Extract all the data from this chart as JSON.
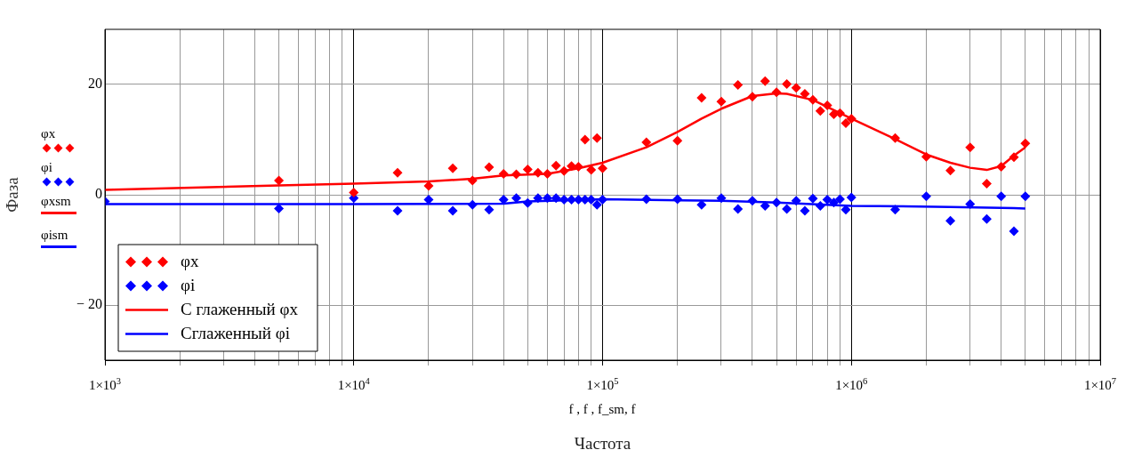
{
  "chart_data": {
    "type": "scatter",
    "xlabel": "Частота",
    "ylabel": "Фаза",
    "log": "x",
    "grid": true,
    "legend": "bottom left",
    "xlim": [
      1000,
      10000000
    ],
    "ylim": [
      -30,
      30
    ],
    "xticks": [
      {
        "value": 1000,
        "label": "1×10$^{3}$"
      },
      {
        "value": 2000,
        "label": null
      },
      {
        "value": 3000,
        "label": null
      },
      {
        "value": 4000,
        "label": null
      },
      {
        "value": 5000,
        "label": null
      },
      {
        "value": 6000,
        "label": null
      },
      {
        "value": 7000,
        "label": null
      },
      {
        "value": 8000,
        "label": null
      },
      {
        "value": 9000,
        "label": null
      },
      {
        "value": 10000,
        "label": "1×10$^{4}$"
      },
      {
        "value": 20000,
        "label": null
      },
      {
        "value": 30000,
        "label": null
      },
      {
        "value": 40000,
        "label": null
      },
      {
        "value": 50000,
        "label": null
      },
      {
        "value": 60000,
        "label": null
      },
      {
        "value": 70000,
        "label": null
      },
      {
        "value": 80000,
        "label": null
      },
      {
        "value": 90000,
        "label": null
      },
      {
        "value": 100000,
        "label": "1×10$^{5}$"
      },
      {
        "value": 200000,
        "label": null
      },
      {
        "value": 300000,
        "label": null
      },
      {
        "value": 400000,
        "label": null
      },
      {
        "value": 500000,
        "label": null
      },
      {
        "value": 600000,
        "label": null
      },
      {
        "value": 700000,
        "label": null
      },
      {
        "value": 800000,
        "label": null
      },
      {
        "value": 900000,
        "label": null
      },
      {
        "value": 1000000,
        "label": "1×10$^{6}$"
      },
      {
        "value": 2000000,
        "label": null
      },
      {
        "value": 3000000,
        "label": null
      },
      {
        "value": 4000000,
        "label": null
      },
      {
        "value": 5000000,
        "label": null
      },
      {
        "value": 6000000,
        "label": null
      },
      {
        "value": 7000000,
        "label": null
      },
      {
        "value": 8000000,
        "label": null
      },
      {
        "value": 9000000,
        "label": null
      },
      {
        "value": 10000000,
        "label": "1×10$^{7}$"
      }
    ],
    "yticks": [
      {
        "value": -20,
        "label": "− 20"
      },
      0,
      20
    ],
    "annotations": [
      "φx",
      "φi",
      "φxsm",
      "φism",
      "f , f , f_sm, f"
    ],
    "series": [
      {
        "name": "φx",
        "type": "scatter",
        "marker": "diamond",
        "color": "#ff0000",
        "x": [
          5000,
          10000,
          15000,
          20000,
          25000,
          30000,
          35000,
          40000,
          45000,
          50000,
          55000,
          60000,
          65000,
          70000,
          75000,
          80000,
          85000,
          90000,
          95000,
          100000,
          150000,
          200000,
          250000,
          300000,
          350000,
          400000,
          450000,
          500000,
          550000,
          600000,
          650000,
          700000,
          750000,
          800000,
          850000,
          900000,
          950000,
          1000000,
          1500000,
          2000000,
          2500000,
          3000000,
          3500000,
          4000000,
          4500000,
          5000000
        ],
        "values": [
          2.6,
          0.4,
          4.0,
          1.6,
          4.8,
          2.6,
          5.0,
          3.8,
          3.7,
          4.6,
          4.0,
          3.8,
          5.3,
          4.3,
          5.2,
          5.1,
          10.0,
          4.5,
          10.3,
          4.8,
          9.5,
          9.8,
          17.6,
          16.9,
          19.9,
          17.8,
          20.6,
          18.6,
          20.1,
          19.4,
          18.3,
          17.2,
          15.2,
          16.2,
          14.6,
          14.8,
          13.0,
          13.8,
          10.3,
          6.9,
          4.4,
          8.6,
          2.0,
          5.1,
          6.8,
          9.3
        ]
      },
      {
        "name": "φi",
        "type": "scatter",
        "marker": "diamond",
        "color": "#0000ff",
        "x": [
          1000,
          5000,
          10000,
          15000,
          20000,
          25000,
          30000,
          35000,
          40000,
          45000,
          50000,
          55000,
          60000,
          65000,
          70000,
          75000,
          80000,
          85000,
          90000,
          95000,
          100000,
          150000,
          200000,
          250000,
          300000,
          350000,
          400000,
          450000,
          500000,
          550000,
          600000,
          650000,
          700000,
          750000,
          800000,
          850000,
          900000,
          950000,
          1000000,
          1500000,
          2000000,
          2500000,
          3000000,
          3500000,
          4000000,
          4500000,
          5000000
        ],
        "values": [
          -1.2,
          -2.5,
          -0.6,
          -2.9,
          -0.9,
          -2.9,
          -1.8,
          -2.7,
          -0.9,
          -0.6,
          -1.5,
          -0.6,
          -0.6,
          -0.6,
          -0.9,
          -0.9,
          -0.9,
          -0.9,
          -0.9,
          -1.8,
          -0.9,
          -0.8,
          -0.8,
          -1.8,
          -0.6,
          -2.6,
          -1.1,
          -2.0,
          -1.4,
          -2.6,
          -1.1,
          -2.9,
          -0.7,
          -2.0,
          -0.9,
          -1.4,
          -0.8,
          -2.7,
          -0.5,
          -2.7,
          -0.3,
          -4.7,
          -1.7,
          -4.4,
          -0.3,
          -6.6,
          -0.3
        ]
      },
      {
        "name": "С глаженный φx",
        "type": "line",
        "marker": "none",
        "line_style": "solid",
        "color": "#ff0000",
        "x": [
          1000,
          5000,
          10000,
          20000,
          30000,
          40000,
          60000,
          80000,
          100000,
          150000,
          200000,
          250000,
          300000,
          400000,
          500000,
          550000,
          700000,
          1000000,
          1500000,
          2000000,
          2500000,
          3000000,
          3500000,
          4000000,
          4500000,
          5000000
        ],
        "values": [
          0.9,
          1.7,
          2.0,
          2.4,
          2.9,
          3.5,
          3.8,
          4.8,
          5.8,
          8.6,
          11.4,
          13.8,
          15.6,
          17.9,
          18.4,
          18.3,
          17.2,
          13.8,
          10.1,
          7.3,
          5.8,
          4.9,
          4.5,
          5.2,
          7.1,
          8.6
        ]
      },
      {
        "name": "Сглаженный φi",
        "type": "line",
        "marker": "none",
        "line_style": "solid",
        "color": "#0000ff",
        "x": [
          1000,
          10000,
          40000,
          50000,
          100000,
          300000,
          500000,
          1000000,
          2500000,
          4500000,
          5000000
        ],
        "values": [
          -1.7,
          -1.7,
          -1.6,
          -1.2,
          -0.8,
          -1.1,
          -1.4,
          -2.0,
          -2.2,
          -2.4,
          -2.5
        ]
      }
    ]
  }
}
